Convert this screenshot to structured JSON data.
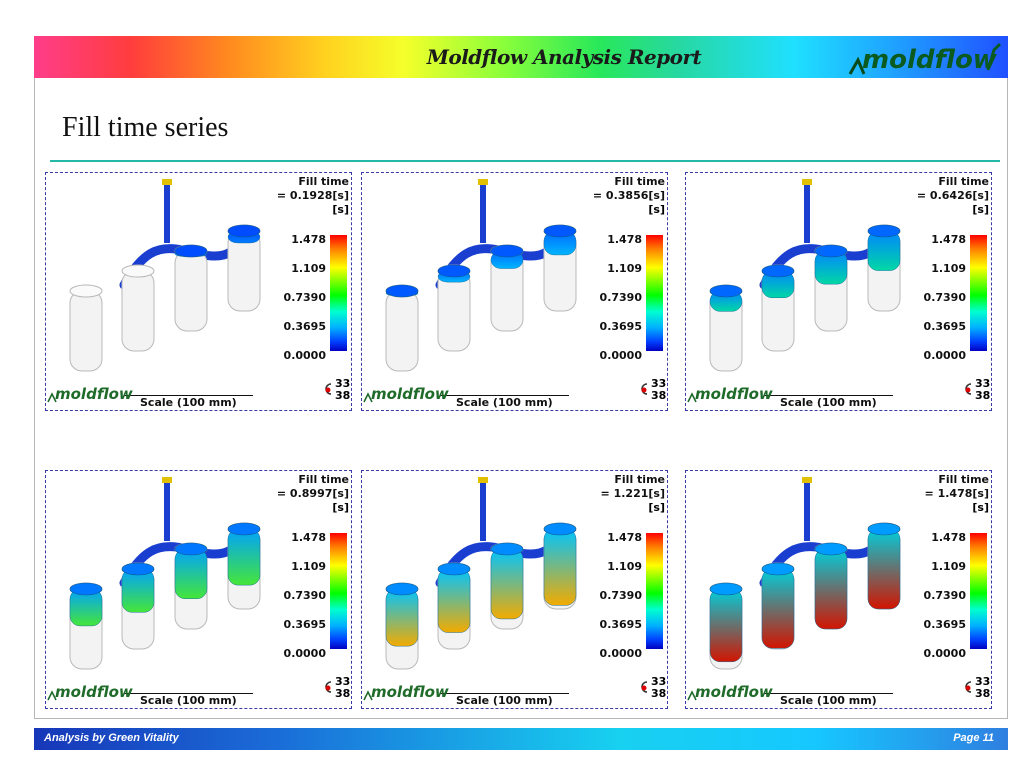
{
  "header": {
    "report_title": "Moldflow Analysis Report",
    "logo": "moldflow-logo"
  },
  "page_title": "Fill time series",
  "legend": {
    "title": "Fill time",
    "unit": "[s]",
    "ticks": [
      "1.478",
      "1.109",
      "0.7390",
      "0.3695",
      "0.0000"
    ],
    "scale_label": "Scale (100 mm)",
    "axis_top": "33",
    "axis_bottom": "38"
  },
  "panels": [
    {
      "time": "= 0.1928[s]",
      "fill_fraction": 0.13
    },
    {
      "time": "= 0.3856[s]",
      "fill_fraction": 0.26
    },
    {
      "time": "= 0.6426[s]",
      "fill_fraction": 0.43
    },
    {
      "time": "= 0.8997[s]",
      "fill_fraction": 0.61
    },
    {
      "time": "= 1.221[s]",
      "fill_fraction": 0.83
    },
    {
      "time": "= 1.478[s]",
      "fill_fraction": 1.0
    }
  ],
  "footer": {
    "left": "Analysis by Green Vitality",
    "right": "Page  11"
  },
  "colors": {
    "title_rule": "#25b7a8",
    "panel_border": "#3a3aa6",
    "runner": "#1a3fd0"
  }
}
